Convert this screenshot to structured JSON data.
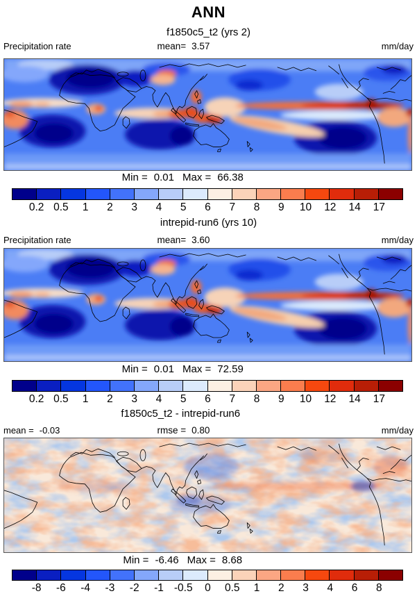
{
  "figure": {
    "title": "ANN"
  },
  "panels": [
    {
      "subtitle": "f1850c5_t2 (yrs 2)",
      "field_label": "Precipitation rate",
      "mean_label": "mean=",
      "mean_value": "3.57",
      "units": "mm/day",
      "min_label": "Min =",
      "min_value": "0.01",
      "max_label": "Max =",
      "max_value": "66.38",
      "colorbar": {
        "colors": [
          "#00008b",
          "#0a1fc1",
          "#0536e0",
          "#2356fb",
          "#4272fb",
          "#84a7fb",
          "#b8cdf8",
          "#dcebfd",
          "#fdf0e3",
          "#fbd3b9",
          "#fba683",
          "#fa7d4e",
          "#f6480f",
          "#e02c0c",
          "#b81e06",
          "#8b0000"
        ],
        "tick_labels": [
          "0.2",
          "0.5",
          "1",
          "2",
          "3",
          "4",
          "5",
          "6",
          "7",
          "8",
          "9",
          "10",
          "12",
          "14",
          "17"
        ]
      }
    },
    {
      "subtitle": "intrepid-run6 (yrs 10)",
      "field_label": "Precipitation rate",
      "mean_label": "mean=",
      "mean_value": "3.60",
      "units": "mm/day",
      "min_label": "Min =",
      "min_value": "0.01",
      "max_label": "Max =",
      "max_value": "72.59",
      "colorbar": {
        "colors": [
          "#00008b",
          "#0a1fc1",
          "#0536e0",
          "#2356fb",
          "#4272fb",
          "#84a7fb",
          "#b8cdf8",
          "#dcebfd",
          "#fdf0e3",
          "#fbd3b9",
          "#fba683",
          "#fa7d4e",
          "#f6480f",
          "#e02c0c",
          "#b81e06",
          "#8b0000"
        ],
        "tick_labels": [
          "0.2",
          "0.5",
          "1",
          "2",
          "3",
          "4",
          "5",
          "6",
          "7",
          "8",
          "9",
          "10",
          "12",
          "14",
          "17"
        ]
      }
    },
    {
      "subtitle": "f1850c5_t2 - intrepid-run6",
      "mean_label": "mean =",
      "mean_value": "-0.03",
      "rmse_label": "rmse =",
      "rmse_value": "0.80",
      "units": "mm/day",
      "min_label": "Min =",
      "min_value": "-6.46",
      "max_label": "Max =",
      "max_value": "8.68",
      "colorbar": {
        "colors": [
          "#00008b",
          "#0a1fc1",
          "#0536e0",
          "#2356fb",
          "#4272fb",
          "#84a7fb",
          "#b8cdf8",
          "#dcebfd",
          "#fdf0e3",
          "#fbd3b9",
          "#fba683",
          "#fa7d4e",
          "#f6480f",
          "#e02c0c",
          "#b81e06",
          "#8b0000"
        ],
        "tick_labels": [
          "-8",
          "-6",
          "-4",
          "-3",
          "-2",
          "-1",
          "-0.5",
          "0",
          "0.5",
          "1",
          "2",
          "3",
          "4",
          "6",
          "8"
        ]
      }
    }
  ],
  "chart_data": [
    {
      "type": "heatmap",
      "title": "f1850c5_t2 (yrs 2)",
      "variable": "Precipitation rate",
      "units": "mm/day",
      "statistics": {
        "mean": 3.57,
        "min": 0.01,
        "max": 66.38
      },
      "levels": [
        0.2,
        0.5,
        1,
        2,
        3,
        4,
        5,
        6,
        7,
        8,
        9,
        10,
        12,
        14,
        17
      ],
      "palette": [
        "#00008b",
        "#0a1fc1",
        "#0536e0",
        "#2356fb",
        "#4272fb",
        "#84a7fb",
        "#b8cdf8",
        "#dcebfd",
        "#fdf0e3",
        "#fbd3b9",
        "#fba683",
        "#fa7d4e",
        "#f6480f",
        "#e02c0c",
        "#b81e06",
        "#8b0000"
      ],
      "legend_position": "bottom"
    },
    {
      "type": "heatmap",
      "title": "intrepid-run6 (yrs 10)",
      "variable": "Precipitation rate",
      "units": "mm/day",
      "statistics": {
        "mean": 3.6,
        "min": 0.01,
        "max": 72.59
      },
      "levels": [
        0.2,
        0.5,
        1,
        2,
        3,
        4,
        5,
        6,
        7,
        8,
        9,
        10,
        12,
        14,
        17
      ],
      "palette": [
        "#00008b",
        "#0a1fc1",
        "#0536e0",
        "#2356fb",
        "#4272fb",
        "#84a7fb",
        "#b8cdf8",
        "#dcebfd",
        "#fdf0e3",
        "#fbd3b9",
        "#fba683",
        "#fa7d4e",
        "#f6480f",
        "#e02c0c",
        "#b81e06",
        "#8b0000"
      ],
      "legend_position": "bottom"
    },
    {
      "type": "heatmap",
      "title": "f1850c5_t2 - intrepid-run6",
      "units": "mm/day",
      "statistics": {
        "mean": -0.03,
        "rmse": 0.8,
        "min": -6.46,
        "max": 8.68
      },
      "levels": [
        -8,
        -6,
        -4,
        -3,
        -2,
        -1,
        -0.5,
        0,
        0.5,
        1,
        2,
        3,
        4,
        6,
        8
      ],
      "palette": [
        "#00008b",
        "#0a1fc1",
        "#0536e0",
        "#2356fb",
        "#4272fb",
        "#84a7fb",
        "#b8cdf8",
        "#dcebfd",
        "#fdf0e3",
        "#fbd3b9",
        "#fba683",
        "#fa7d4e",
        "#f6480f",
        "#e02c0c",
        "#b81e06",
        "#8b0000"
      ],
      "legend_position": "bottom"
    }
  ]
}
